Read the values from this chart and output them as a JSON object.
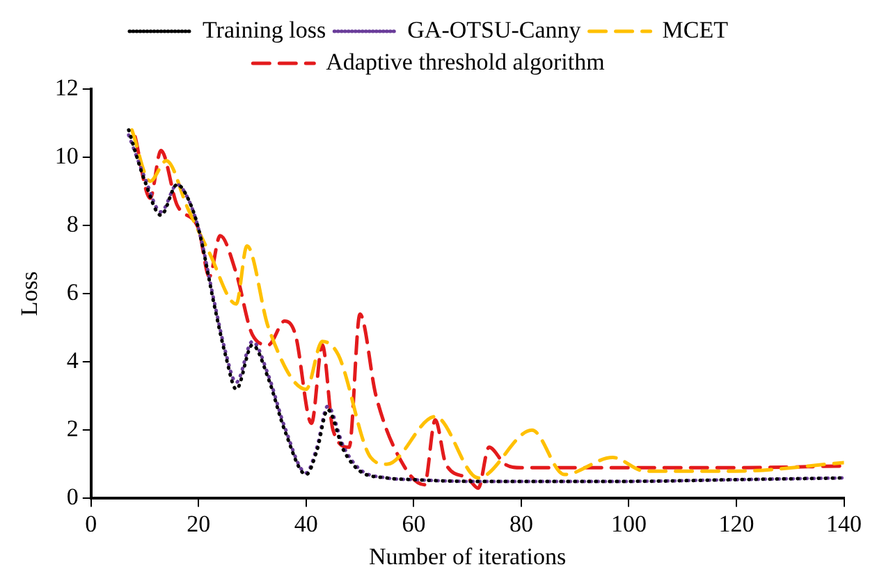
{
  "chart_data": {
    "type": "line",
    "xlabel": "Number of iterations",
    "ylabel": "Loss",
    "xlim": [
      0,
      140
    ],
    "xticks": [
      0,
      20,
      40,
      60,
      80,
      100,
      120,
      140
    ],
    "ylim": [
      0,
      12
    ],
    "yticks": [
      0,
      2,
      4,
      6,
      8,
      10,
      12
    ],
    "grid": false,
    "legend": "top",
    "marker": "none",
    "series": [
      {
        "name": "Training loss",
        "color": "#000000",
        "line_style": "dotted",
        "x": [
          7,
          10,
          13,
          16,
          18,
          20,
          23,
          25,
          27,
          30,
          33,
          36,
          40,
          42,
          44,
          47,
          50,
          55,
          60,
          70,
          80,
          100,
          120,
          140
        ],
        "values": [
          10.8,
          9.3,
          8.3,
          9.2,
          8.8,
          7.9,
          5.6,
          4.2,
          3.2,
          4.5,
          3.5,
          2.0,
          0.7,
          1.4,
          2.6,
          1.4,
          0.8,
          0.6,
          0.55,
          0.5,
          0.5,
          0.5,
          0.55,
          0.6
        ]
      },
      {
        "name": "GA-OTSU-Canny",
        "color": "#6a3d9a",
        "line_style": "dotted",
        "x": [
          7,
          10,
          13,
          16,
          18,
          20,
          23,
          25,
          27,
          30,
          33,
          36,
          40,
          42,
          44,
          47,
          50,
          55,
          60,
          70,
          80,
          100,
          120,
          140
        ],
        "values": [
          10.65,
          9.4,
          8.4,
          9.2,
          8.8,
          7.9,
          5.7,
          4.3,
          3.4,
          4.6,
          3.6,
          2.1,
          0.75,
          1.5,
          2.7,
          1.5,
          0.85,
          0.6,
          0.55,
          0.5,
          0.5,
          0.5,
          0.55,
          0.6
        ]
      },
      {
        "name": "MCET",
        "color": "#ffc000",
        "line_style": "dashed",
        "x": [
          7.6,
          11,
          14,
          18,
          22,
          27,
          29,
          33,
          40,
          43,
          46,
          52,
          55,
          64,
          72,
          82,
          88,
          97,
          103,
          120,
          140
        ],
        "values": [
          10.8,
          9.3,
          9.9,
          8.5,
          7.2,
          5.7,
          7.4,
          5.0,
          3.2,
          4.6,
          4.2,
          1.2,
          1.0,
          2.4,
          0.6,
          2.0,
          0.7,
          1.2,
          0.8,
          0.8,
          1.05
        ]
      },
      {
        "name": "Adaptive threshold algorithm",
        "color": "#e31a1c",
        "line_style": "dashed",
        "x": [
          8.2,
          11,
          13,
          16,
          20,
          22,
          24,
          27,
          30,
          33,
          36,
          38,
          41,
          43,
          45,
          48,
          50,
          53,
          58,
          62,
          64,
          66,
          70,
          72,
          74,
          77,
          80,
          100,
          120,
          140
        ],
        "values": [
          10.6,
          8.8,
          10.2,
          8.6,
          7.9,
          6.5,
          7.7,
          6.6,
          4.8,
          4.5,
          5.2,
          4.8,
          2.2,
          4.5,
          2.0,
          1.5,
          5.4,
          3.0,
          1.0,
          0.4,
          2.3,
          1.0,
          0.6,
          0.3,
          1.5,
          1.0,
          0.9,
          0.9,
          0.9,
          0.95
        ]
      }
    ]
  }
}
